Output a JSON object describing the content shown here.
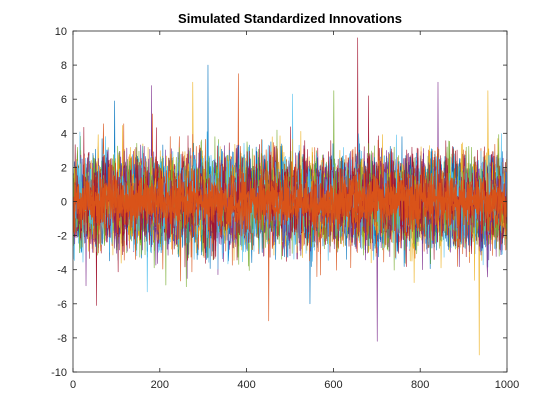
{
  "chart_data": {
    "type": "line",
    "title": "Simulated Standardized Innovations",
    "xlabel": "",
    "ylabel": "",
    "xlim": [
      0,
      1000
    ],
    "ylim": [
      -10,
      10
    ],
    "x_ticks": [
      "0",
      "200",
      "400",
      "600",
      "800",
      "1000"
    ],
    "y_ticks": [
      "-10",
      "-8",
      "-6",
      "-4",
      "-2",
      "0",
      "2",
      "4",
      "6",
      "8",
      "10"
    ],
    "grid": false,
    "legend": "none",
    "num_observations": 1000,
    "notes": "Many overlaid noise series (standardized innovations, roughly N(0,1)); most values between -4 and 4 with occasional spikes.",
    "series": [
      {
        "color": "#0072BD",
        "spikes": [
          [
            310,
            8.0
          ],
          [
            545,
            -6.0
          ],
          [
            95,
            5.9
          ]
        ]
      },
      {
        "color": "#D95319",
        "spikes": [
          [
            380,
            7.5
          ],
          [
            450,
            -7.0
          ]
        ]
      },
      {
        "color": "#EDB120",
        "spikes": [
          [
            275,
            7.0
          ],
          [
            955,
            6.5
          ],
          [
            935,
            -9.0
          ]
        ]
      },
      {
        "color": "#7E2F8E",
        "spikes": [
          [
            180,
            6.8
          ],
          [
            840,
            7.0
          ],
          [
            700,
            -8.2
          ]
        ]
      },
      {
        "color": "#77AC30",
        "spikes": [
          [
            600,
            6.5
          ],
          [
            260,
            -5.0
          ]
        ]
      },
      {
        "color": "#4DBEEE",
        "spikes": [
          [
            505,
            6.3
          ],
          [
            170,
            -5.3
          ]
        ]
      },
      {
        "color": "#A2142F",
        "spikes": [
          [
            655,
            9.6
          ],
          [
            680,
            6.2
          ],
          [
            53,
            -6.1
          ]
        ]
      }
    ],
    "overlay_series": {
      "color": "#D95319",
      "amplitude": "approx. -2.5 to 2.5"
    }
  }
}
